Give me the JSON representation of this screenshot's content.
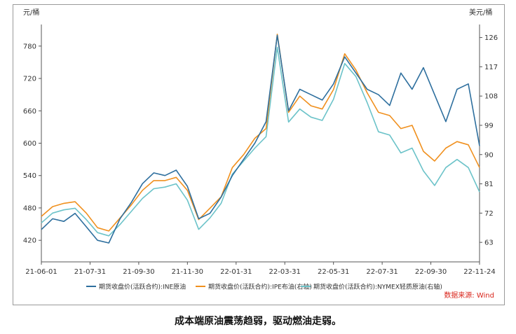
{
  "chart_data": {
    "type": "line",
    "y_left_unit": "元/桶",
    "y_right_unit": "美元/桶",
    "x_ticks": [
      "21-06-01",
      "21-07-31",
      "21-09-30",
      "21-11-30",
      "22-01-31",
      "22-03-31",
      "22-05-31",
      "22-07-31",
      "22-09-30",
      "22-11-24"
    ],
    "ylim_left": [
      380,
      820
    ],
    "yticks_left": [
      420,
      480,
      540,
      600,
      660,
      720,
      780
    ],
    "ylim_right": [
      57,
      130
    ],
    "yticks_right": [
      63,
      72,
      81,
      90,
      99,
      108,
      117,
      126
    ],
    "grid": false,
    "legend_position": "bottom",
    "x": [
      "21-06-01",
      "21-06-15",
      "21-07-01",
      "21-07-15",
      "21-07-31",
      "21-08-10",
      "21-08-20",
      "21-09-01",
      "21-09-15",
      "21-09-30",
      "21-10-10",
      "21-10-20",
      "21-11-01",
      "21-11-15",
      "21-11-30",
      "21-12-15",
      "21-12-31",
      "22-01-15",
      "22-01-31",
      "22-02-15",
      "22-02-28",
      "22-03-08",
      "22-03-15",
      "22-03-31",
      "22-04-15",
      "22-04-30",
      "22-05-15",
      "22-05-31",
      "22-06-15",
      "22-06-30",
      "22-07-15",
      "22-07-31",
      "22-08-15",
      "22-08-31",
      "22-09-15",
      "22-09-30",
      "22-10-15",
      "22-10-31",
      "22-11-10",
      "22-11-24"
    ],
    "series": [
      {
        "name": "期货收盘价(活跃合约):INE原油",
        "axis": "left",
        "color": "#2e6f9e",
        "values": [
          440,
          460,
          455,
          470,
          445,
          420,
          415,
          460,
          490,
          525,
          545,
          540,
          550,
          520,
          460,
          470,
          500,
          540,
          570,
          600,
          640,
          800,
          660,
          700,
          690,
          680,
          710,
          760,
          730,
          700,
          690,
          670,
          730,
          700,
          740,
          690,
          640,
          700,
          710,
          595
        ]
      },
      {
        "name": "期货收盘价(活跃合约):IPE布油(右轴)",
        "axis": "right",
        "color": "#f0901e",
        "values": [
          71,
          74,
          75,
          75.5,
          72,
          67.5,
          66.5,
          70.5,
          74.5,
          79,
          82,
          82,
          83,
          79,
          70,
          73.5,
          77,
          86,
          90,
          95,
          98,
          127,
          103,
          108,
          105,
          104,
          110,
          121,
          116,
          109,
          103,
          102,
          98,
          99,
          91,
          88,
          92,
          94,
          93,
          86
        ]
      },
      {
        "name": "期货收盘价(活跃合约):NYMEX轻质原油(右轴)",
        "axis": "right",
        "color": "#6cc3c9",
        "values": [
          69,
          72,
          73,
          73.5,
          70,
          66,
          65,
          68.5,
          72.5,
          76.5,
          79.5,
          80,
          81,
          76,
          67,
          70.5,
          75,
          84,
          88,
          92,
          95.5,
          123,
          100,
          104,
          101.5,
          100.5,
          107,
          118,
          114,
          106,
          97,
          96,
          90.5,
          92,
          85,
          80.5,
          86,
          88.5,
          86,
          78.5
        ]
      }
    ],
    "source_note": "数据来源: Wind"
  },
  "caption": "成本端原油震荡趋弱，驱动燃油走弱。"
}
